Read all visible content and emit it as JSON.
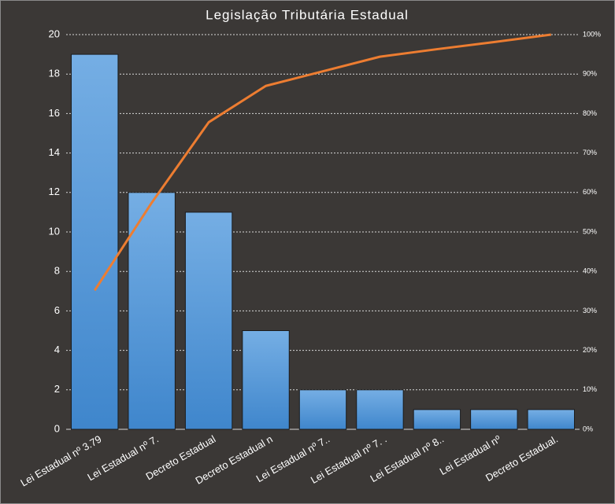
{
  "chart_data": {
    "type": "pareto",
    "title": "Legislação Tributária Estadual",
    "categories": [
      "Lei Estadual nº 3.79",
      "Lei Estadual nº 7.",
      "Decreto Estadual",
      "Decreto Estadual n",
      "Lei Estadual nº 7..",
      "Lei Estadual nº 7. .",
      "Lei Estadual nº 8..",
      "Lei Estadual nº",
      "Decreto Estadual."
    ],
    "series": [
      {
        "type": "bar",
        "color": "#4a8fd6",
        "values": [
          19,
          12,
          11,
          5,
          2,
          2,
          1,
          1,
          1
        ]
      },
      {
        "type": "line",
        "axis": "y2",
        "color": "#ed7d31",
        "values": [
          35.2,
          57.4,
          77.8,
          87.0,
          90.7,
          94.4,
          96.3,
          98.1,
          100
        ]
      }
    ],
    "ylim": [
      0,
      20
    ],
    "yticks": [
      0,
      2,
      4,
      6,
      8,
      10,
      12,
      14,
      16,
      18,
      20
    ],
    "y2lim": [
      0,
      100
    ],
    "y2ticks": [
      {
        "value": 0,
        "label": "0%"
      },
      {
        "value": 10,
        "label": "10%"
      },
      {
        "value": 20,
        "label": "20%"
      },
      {
        "value": 30,
        "label": "30%"
      },
      {
        "value": 40,
        "label": "40%"
      },
      {
        "value": 50,
        "label": "50%"
      },
      {
        "value": 60,
        "label": "60%"
      },
      {
        "value": 70,
        "label": "70%"
      },
      {
        "value": 80,
        "label": "80%"
      },
      {
        "value": 90,
        "label": "90%"
      },
      {
        "value": 100,
        "label": "100%"
      }
    ],
    "grid": true
  }
}
